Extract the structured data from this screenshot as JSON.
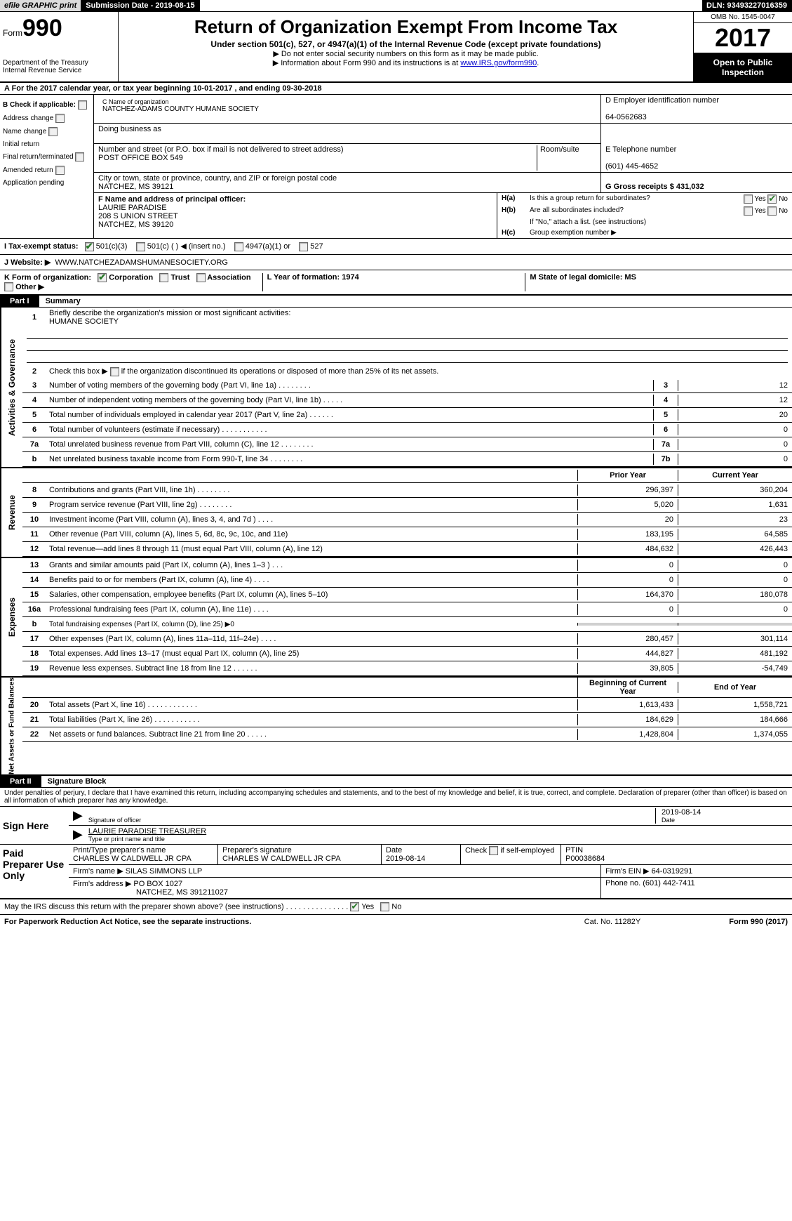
{
  "top": {
    "efile": "efile GRAPHIC print",
    "sub_label": "Submission Date - 2019-08-15",
    "dln": "DLN: 93493227016359"
  },
  "header": {
    "form": "Form",
    "num": "990",
    "dept": "Department of the Treasury",
    "irs": "Internal Revenue Service",
    "title": "Return of Organization Exempt From Income Tax",
    "sub1": "Under section 501(c), 527, or 4947(a)(1) of the Internal Revenue Code (except private foundations)",
    "sub2": "▶ Do not enter social security numbers on this form as it may be made public.",
    "sub3_pre": "▶ Information about Form 990 and its instructions is at ",
    "sub3_link": "www.IRS.gov/form990",
    "sub3_post": ".",
    "omb": "OMB No. 1545-0047",
    "year": "2017",
    "open": "Open to Public Inspection"
  },
  "rowA": "A   For the 2017 calendar year, or tax year beginning 10-01-2017        , and ending 09-30-2018",
  "colB": {
    "hdr": "B Check if applicable:",
    "items": [
      "Address change",
      "Name change",
      "Initial return",
      "Final return/terminated",
      "Amended return",
      "Application pending"
    ]
  },
  "boxC": {
    "label": "C Name of organization",
    "name": "NATCHEZ-ADAMS COUNTY HUMANE SOCIETY",
    "dba_label": "Doing business as",
    "addr_label": "Number and street (or P.O. box if mail is not delivered to street address)",
    "room_label": "Room/suite",
    "addr": "POST OFFICE BOX 549",
    "city_label": "City or town, state or province, country, and ZIP or foreign postal code",
    "city": "NATCHEZ, MS  39121"
  },
  "boxD": {
    "label": "D Employer identification number",
    "ein": "64-0562683"
  },
  "boxE": {
    "label": "E Telephone number",
    "phone": "(601) 445-4652"
  },
  "boxG": {
    "label": "G Gross receipts $ 431,032"
  },
  "boxF": {
    "label": "F Name and address of principal officer:",
    "name": "LAURIE PARADISE",
    "addr1": "208 S UNION STREET",
    "addr2": "NATCHEZ, MS  39120"
  },
  "boxH": {
    "ha_label": "H(a)",
    "ha_text": "Is this a group return for subordinates?",
    "hb_label": "H(b)",
    "hb_text": "Are all subordinates included?",
    "hb_note": "If \"No,\" attach a list. (see instructions)",
    "hc_label": "H(c)",
    "hc_text": "Group exemption number ▶",
    "yes": "Yes",
    "no": "No"
  },
  "rowI": {
    "label": "I     Tax-exempt status:",
    "opt1": "501(c)(3)",
    "opt2": "501(c) (    ) ◀ (insert no.)",
    "opt3": "4947(a)(1) or",
    "opt4": "527"
  },
  "rowJ": {
    "label": "J   Website: ▶",
    "url": "WWW.NATCHEZADAMSHUMANESOCIETY.ORG"
  },
  "rowK": {
    "label": "K Form of organization:",
    "opt1": "Corporation",
    "opt2": "Trust",
    "opt3": "Association",
    "opt4": "Other ▶",
    "l_label": "L Year of formation: 1974",
    "m_label": "M State of legal domicile: MS"
  },
  "part1": {
    "hdr": "Part I",
    "title": "Summary",
    "line1": "Briefly describe the organization's mission or most significant activities:",
    "mission": "HUMANE SOCIETY",
    "line2": "Check this box ▶         if the organization discontinued its operations or disposed of more than 25% of its net assets.",
    "gov": [
      {
        "ln": "3",
        "desc": "Number of voting members of the governing body (Part VI, line 1a)  .     .     .     .     .     .     .     .",
        "num": "3",
        "val": "12"
      },
      {
        "ln": "4",
        "desc": "Number of independent voting members of the governing body (Part VI, line 1b)     .     .     .     .     .",
        "num": "4",
        "val": "12"
      },
      {
        "ln": "5",
        "desc": "Total number of individuals employed in calendar year 2017 (Part V, line 2a)     .     .     .     .     .     .",
        "num": "5",
        "val": "20"
      },
      {
        "ln": "6",
        "desc": "Total number of volunteers (estimate if necessary)     .     .     .     .     .     .     .     .     .     .     .",
        "num": "6",
        "val": "0"
      },
      {
        "ln": "7a",
        "desc": "Total unrelated business revenue from Part VIII, column (C), line 12   .     .     .     .     .     .     .     .",
        "num": "7a",
        "val": "0"
      },
      {
        "ln": "b",
        "desc": "Net unrelated business taxable income from Form 990-T, line 34    .     .     .     .     .     .     .     .",
        "num": "7b",
        "val": "0"
      }
    ],
    "prior": "Prior Year",
    "current": "Current Year",
    "rev": [
      {
        "ln": "8",
        "desc": "Contributions and grants (Part VIII, line 1h)     .     .     .     .     .     .     .     .",
        "pv": "296,397",
        "cv": "360,204"
      },
      {
        "ln": "9",
        "desc": "Program service revenue (Part VIII, line 2g)    .     .     .     .     .     .     .     .",
        "pv": "5,020",
        "cv": "1,631"
      },
      {
        "ln": "10",
        "desc": "Investment income (Part VIII, column (A), lines 3, 4, and 7d )    .     .     .     .",
        "pv": "20",
        "cv": "23"
      },
      {
        "ln": "11",
        "desc": "Other revenue (Part VIII, column (A), lines 5, 6d, 8c, 9c, 10c, and 11e)",
        "pv": "183,195",
        "cv": "64,585"
      },
      {
        "ln": "12",
        "desc": "Total revenue—add lines 8 through 11 (must equal Part VIII, column (A), line 12)",
        "pv": "484,632",
        "cv": "426,443"
      }
    ],
    "exp": [
      {
        "ln": "13",
        "desc": "Grants and similar amounts paid (Part IX, column (A), lines 1–3 )    .     .     .",
        "pv": "0",
        "cv": "0"
      },
      {
        "ln": "14",
        "desc": "Benefits paid to or for members (Part IX, column (A), line 4)    .     .     .     .",
        "pv": "0",
        "cv": "0"
      },
      {
        "ln": "15",
        "desc": "Salaries, other compensation, employee benefits (Part IX, column (A), lines 5–10)",
        "pv": "164,370",
        "cv": "180,078"
      },
      {
        "ln": "16a",
        "desc": "Professional fundraising fees (Part IX, column (A), line 11e)    .     .     .     .",
        "pv": "0",
        "cv": "0"
      },
      {
        "ln": "b",
        "desc": "Total fundraising expenses (Part IX, column (D), line 25) ▶0",
        "pv": "",
        "cv": "",
        "shade": true,
        "small": true
      },
      {
        "ln": "17",
        "desc": "Other expenses (Part IX, column (A), lines 11a–11d, 11f–24e)    .     .     .     .",
        "pv": "280,457",
        "cv": "301,114"
      },
      {
        "ln": "18",
        "desc": "Total expenses. Add lines 13–17 (must equal Part IX, column (A), line 25)",
        "pv": "444,827",
        "cv": "481,192"
      },
      {
        "ln": "19",
        "desc": "Revenue less expenses. Subtract line 18 from line 12    .     .     .     .     .     .",
        "pv": "39,805",
        "cv": "-54,749"
      }
    ],
    "beg": "Beginning of Current Year",
    "end": "End of Year",
    "net": [
      {
        "ln": "20",
        "desc": "Total assets (Part X, line 16)    .     .     .     .     .     .     .     .     .     .     .     .",
        "pv": "1,613,433",
        "cv": "1,558,721"
      },
      {
        "ln": "21",
        "desc": "Total liabilities (Part X, line 26)   .     .     .     .     .     .     .     .     .     .     .",
        "pv": "184,629",
        "cv": "184,666"
      },
      {
        "ln": "22",
        "desc": "Net assets or fund balances. Subtract line 21 from line 20   .     .     .     .     .",
        "pv": "1,428,804",
        "cv": "1,374,055"
      }
    ],
    "sides": {
      "gov": "Activities & Governance",
      "rev": "Revenue",
      "exp": "Expenses",
      "net": "Net Assets or Fund Balances"
    }
  },
  "part2": {
    "hdr": "Part II",
    "title": "Signature Block",
    "penalty": "Under penalties of perjury, I declare that I have examined this return, including accompanying schedules and statements, and to the best of my knowledge and belief, it is true, correct, and complete. Declaration of preparer (other than officer) is based on all information of which preparer has any knowledge.",
    "sign_here": "Sign Here",
    "sig_date": "2019-08-14",
    "sig_label": "Signature of officer",
    "date_label": "Date",
    "name": "LAURIE PARADISE  TREASURER",
    "name_label": "Type or print name and title",
    "paid": "Paid Preparer Use Only",
    "prep_label": "Print/Type preparer's name",
    "prep_name": "CHARLES W CALDWELL JR CPA",
    "prep_sig_label": "Preparer's signature",
    "prep_sig": "CHARLES W CALDWELL JR CPA",
    "prep_date_label": "Date",
    "prep_date": "2019-08-14",
    "self_label": "Check          if self-employed",
    "ptin_label": "PTIN",
    "ptin": "P00038684",
    "firm_name_label": "Firm's name      ▶",
    "firm_name": "SILAS SIMMONS LLP",
    "firm_ein_label": "Firm's EIN ▶",
    "firm_ein": "64-0319291",
    "firm_addr_label": "Firm's address ▶",
    "firm_addr": "PO BOX 1027",
    "firm_city": "NATCHEZ, MS  391211027",
    "firm_phone_label": "Phone no.",
    "firm_phone": "(601) 442-7411",
    "discuss": "May the IRS discuss this return with the preparer shown above? (see instructions)    .     .     .     .     .     .     .     .     .     .     .     .     .     .     .",
    "yes": "Yes",
    "no": "No"
  },
  "footer": {
    "pra": "For Paperwork Reduction Act Notice, see the separate instructions.",
    "cat": "Cat. No. 11282Y",
    "form": "Form 990 (2017)"
  }
}
